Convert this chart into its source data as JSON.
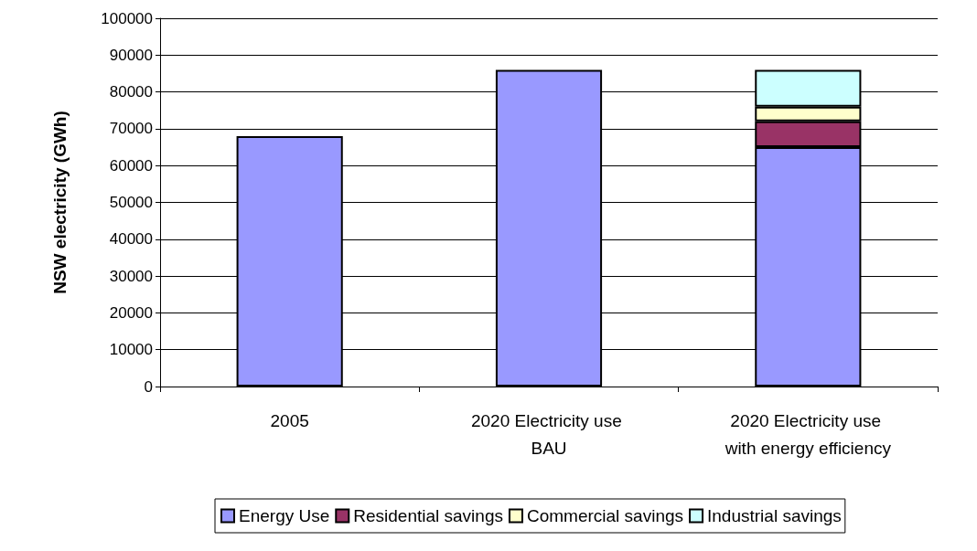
{
  "chart_data": {
    "type": "bar",
    "stacked": true,
    "ylabel": "NSW electricity (GWh)",
    "categories": [
      "2005",
      "2020 Electricity use BAU",
      "2020 Electricity use with energy efficiency"
    ],
    "series": [
      {
        "name": "Energy Use",
        "color": "#9999ff",
        "values": [
          68000,
          86000,
          65000
        ]
      },
      {
        "name": "Residential savings",
        "color": "#993366",
        "values": [
          null,
          null,
          7000
        ]
      },
      {
        "name": "Commercial savings",
        "color": "#ffffcc",
        "values": [
          null,
          null,
          4000
        ]
      },
      {
        "name": "Industrial savings",
        "color": "#ccffff",
        "values": [
          null,
          null,
          10000
        ]
      }
    ],
    "ylim": [
      0,
      100000
    ],
    "yticks": [
      0,
      10000,
      20000,
      30000,
      40000,
      50000,
      60000,
      70000,
      80000,
      90000,
      100000
    ],
    "grid": "y",
    "legend": "bottom"
  }
}
